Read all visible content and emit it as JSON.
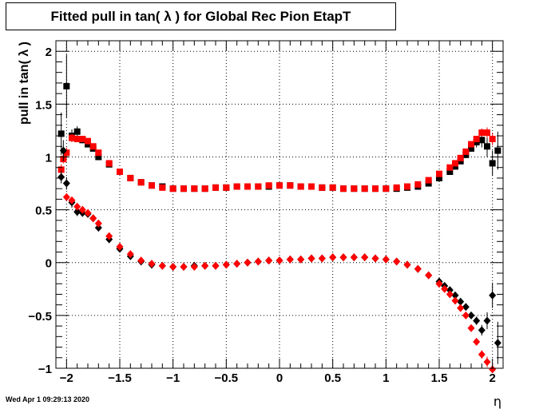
{
  "title": "Fitted pull in tan( λ ) for Global Rec Pion EtapT",
  "timestamp": "Wed Apr  1 09:29:13 2020",
  "chart_data": {
    "type": "scatter",
    "title": "Fitted pull in tan( λ ) for Global Rec Pion EtapT",
    "xlabel": "η",
    "ylabel": "pull in tan( λ )",
    "xlim": [
      -2.1,
      2.1
    ],
    "ylim": [
      -1.0,
      2.1
    ],
    "x_ticks": [
      -2,
      -1.5,
      -1,
      -0.5,
      0,
      0.5,
      1,
      1.5,
      2
    ],
    "x_tick_labels": [
      "−2",
      "−1.5",
      "−1",
      "−0.5",
      "0",
      "0.5",
      "1",
      "1.5",
      "2"
    ],
    "y_ticks": [
      -1,
      -0.5,
      0,
      0.5,
      1,
      1.5,
      2
    ],
    "y_tick_labels": [
      "−1",
      "−0.5",
      "0",
      "0.5",
      "1",
      "1.5",
      "2"
    ],
    "grid": true,
    "legend": "none",
    "series": [
      {
        "marker": "square",
        "color": "#000000",
        "x": [
          -2.05,
          -2.0,
          -1.95,
          -1.9,
          -1.85,
          -1.8,
          -1.75,
          -1.7,
          -1.6,
          -1.5,
          -1.4,
          -1.3,
          -1.2,
          -1.1,
          -1.0,
          -0.9,
          -0.8,
          -0.7,
          -0.6,
          -0.5,
          -0.4,
          -0.3,
          -0.2,
          -0.1,
          0.0,
          0.1,
          0.2,
          0.3,
          0.4,
          0.5,
          0.6,
          0.7,
          0.8,
          0.9,
          1.0,
          1.1,
          1.2,
          1.3,
          1.4,
          1.5,
          1.6,
          1.65,
          1.7,
          1.75,
          1.8,
          1.85,
          1.9,
          1.95,
          2.0,
          2.05
        ],
        "y": [
          1.22,
          1.67,
          1.2,
          1.24,
          1.16,
          1.12,
          1.08,
          1.0,
          0.93,
          0.86,
          0.8,
          0.76,
          0.73,
          0.72,
          0.7,
          0.7,
          0.7,
          0.7,
          0.71,
          0.71,
          0.72,
          0.72,
          0.72,
          0.72,
          0.73,
          0.73,
          0.72,
          0.72,
          0.71,
          0.71,
          0.7,
          0.7,
          0.7,
          0.7,
          0.7,
          0.7,
          0.71,
          0.72,
          0.75,
          0.8,
          0.86,
          0.91,
          0.96,
          1.02,
          1.08,
          1.14,
          1.16,
          1.1,
          0.94,
          1.06
        ],
        "err": [
          0.2,
          0.3,
          0.06,
          0.05,
          0.03,
          0.02,
          0.02,
          0.01,
          0.0,
          0.0,
          0.0,
          0.0,
          0.0,
          0.0,
          0.0,
          0.0,
          0.0,
          0.0,
          0.0,
          0.0,
          0.0,
          0.0,
          0.0,
          0.0,
          0.0,
          0.0,
          0.0,
          0.0,
          0.0,
          0.0,
          0.0,
          0.0,
          0.0,
          0.0,
          0.0,
          0.0,
          0.0,
          0.0,
          0.0,
          0.0,
          0.0,
          0.01,
          0.01,
          0.02,
          0.03,
          0.05,
          0.07,
          0.1,
          0.12,
          0.18
        ]
      },
      {
        "marker": "square",
        "color": "#ff0000",
        "x": [
          -2.05,
          -2.03,
          -2.0,
          -1.95,
          -1.9,
          -1.85,
          -1.8,
          -1.75,
          -1.7,
          -1.6,
          -1.5,
          -1.4,
          -1.3,
          -1.2,
          -1.1,
          -1.0,
          -0.9,
          -0.8,
          -0.7,
          -0.6,
          -0.5,
          -0.4,
          -0.3,
          -0.2,
          -0.1,
          0.0,
          0.1,
          0.2,
          0.3,
          0.4,
          0.5,
          0.6,
          0.7,
          0.8,
          0.9,
          1.0,
          1.1,
          1.2,
          1.3,
          1.4,
          1.5,
          1.6,
          1.65,
          1.7,
          1.75,
          1.8,
          1.85,
          1.9,
          1.95,
          2.0
        ],
        "y": [
          0.88,
          0.98,
          1.04,
          1.18,
          1.17,
          1.17,
          1.15,
          1.1,
          1.04,
          0.94,
          0.86,
          0.8,
          0.76,
          0.73,
          0.71,
          0.7,
          0.7,
          0.7,
          0.7,
          0.71,
          0.71,
          0.72,
          0.72,
          0.72,
          0.73,
          0.73,
          0.73,
          0.72,
          0.72,
          0.71,
          0.71,
          0.7,
          0.7,
          0.7,
          0.7,
          0.7,
          0.71,
          0.72,
          0.74,
          0.78,
          0.84,
          0.9,
          0.94,
          0.99,
          1.05,
          1.12,
          1.17,
          1.23,
          1.23,
          1.17
        ],
        "err": [
          0.05,
          0.04,
          0.05,
          0.04,
          0.03,
          0.02,
          0.02,
          0.01,
          0.01,
          0.0,
          0.0,
          0.0,
          0.0,
          0.0,
          0.0,
          0.0,
          0.0,
          0.0,
          0.0,
          0.0,
          0.0,
          0.0,
          0.0,
          0.0,
          0.0,
          0.0,
          0.0,
          0.0,
          0.0,
          0.0,
          0.0,
          0.0,
          0.0,
          0.0,
          0.0,
          0.0,
          0.0,
          0.0,
          0.0,
          0.0,
          0.0,
          0.0,
          0.01,
          0.01,
          0.02,
          0.02,
          0.03,
          0.04,
          0.05,
          0.06
        ]
      },
      {
        "marker": "diamond",
        "color": "#000000",
        "x": [
          -2.05,
          -2.03,
          -2.0,
          -1.95,
          -1.9,
          -1.85,
          -1.8,
          -1.75,
          -1.7,
          -1.6,
          -1.5,
          -1.4,
          -1.3,
          -1.2,
          -1.1,
          -1.0,
          -0.9,
          -0.8,
          -0.7,
          -0.6,
          -0.5,
          -0.4,
          -0.3,
          -0.2,
          -0.1,
          0.0,
          0.1,
          0.2,
          0.3,
          0.4,
          0.5,
          0.6,
          0.7,
          0.8,
          0.9,
          1.0,
          1.1,
          1.2,
          1.3,
          1.4,
          1.5,
          1.55,
          1.6,
          1.65,
          1.7,
          1.75,
          1.8,
          1.85,
          1.9,
          1.95,
          2.0,
          2.05
        ],
        "y": [
          0.81,
          1.06,
          0.75,
          0.57,
          0.48,
          0.47,
          0.46,
          0.42,
          0.33,
          0.22,
          0.13,
          0.06,
          0.01,
          -0.02,
          -0.03,
          -0.04,
          -0.04,
          -0.03,
          -0.03,
          -0.03,
          -0.02,
          -0.01,
          0.0,
          0.01,
          0.02,
          0.02,
          0.03,
          0.03,
          0.04,
          0.04,
          0.05,
          0.05,
          0.05,
          0.05,
          0.04,
          0.03,
          0.01,
          -0.02,
          -0.06,
          -0.12,
          -0.18,
          -0.22,
          -0.26,
          -0.31,
          -0.37,
          -0.42,
          -0.5,
          -0.55,
          -0.64,
          -0.55,
          -0.31,
          -0.76
        ],
        "err": [
          0.06,
          0.1,
          0.06,
          0.05,
          0.04,
          0.03,
          0.02,
          0.02,
          0.01,
          0.0,
          0.0,
          0.0,
          0.0,
          0.0,
          0.0,
          0.0,
          0.0,
          0.0,
          0.0,
          0.0,
          0.0,
          0.0,
          0.0,
          0.0,
          0.0,
          0.0,
          0.0,
          0.0,
          0.0,
          0.0,
          0.0,
          0.0,
          0.0,
          0.0,
          0.0,
          0.0,
          0.0,
          0.0,
          0.0,
          0.0,
          0.01,
          0.01,
          0.01,
          0.01,
          0.02,
          0.02,
          0.03,
          0.04,
          0.05,
          0.08,
          0.12,
          0.2
        ]
      },
      {
        "marker": "diamond",
        "color": "#ff0000",
        "x": [
          -2.0,
          -1.95,
          -1.9,
          -1.85,
          -1.8,
          -1.75,
          -1.7,
          -1.6,
          -1.5,
          -1.4,
          -1.3,
          -1.2,
          -1.1,
          -1.0,
          -0.9,
          -0.8,
          -0.7,
          -0.6,
          -0.5,
          -0.4,
          -0.3,
          -0.2,
          -0.1,
          0.0,
          0.1,
          0.2,
          0.3,
          0.4,
          0.5,
          0.6,
          0.7,
          0.8,
          0.9,
          1.0,
          1.1,
          1.2,
          1.3,
          1.4,
          1.5,
          1.55,
          1.6,
          1.65,
          1.7,
          1.75,
          1.8,
          1.85,
          1.9,
          1.95,
          2.0
        ],
        "y": [
          0.62,
          0.59,
          0.53,
          0.5,
          0.47,
          0.42,
          0.37,
          0.25,
          0.15,
          0.08,
          0.02,
          -0.01,
          -0.03,
          -0.04,
          -0.04,
          -0.04,
          -0.03,
          -0.03,
          -0.02,
          -0.01,
          0.0,
          0.01,
          0.02,
          0.02,
          0.03,
          0.03,
          0.04,
          0.04,
          0.05,
          0.05,
          0.05,
          0.05,
          0.04,
          0.03,
          0.01,
          -0.02,
          -0.06,
          -0.12,
          -0.2,
          -0.25,
          -0.3,
          -0.36,
          -0.43,
          -0.5,
          -0.62,
          -0.75,
          -0.87,
          -0.94,
          -1.01
        ],
        "err": [
          0.03,
          0.03,
          0.02,
          0.02,
          0.02,
          0.01,
          0.01,
          0.0,
          0.0,
          0.0,
          0.0,
          0.0,
          0.0,
          0.0,
          0.0,
          0.0,
          0.0,
          0.0,
          0.0,
          0.0,
          0.0,
          0.0,
          0.0,
          0.0,
          0.0,
          0.0,
          0.0,
          0.0,
          0.0,
          0.0,
          0.0,
          0.0,
          0.0,
          0.0,
          0.0,
          0.0,
          0.0,
          0.0,
          0.0,
          0.01,
          0.01,
          0.01,
          0.02,
          0.02,
          0.03,
          0.03,
          0.04,
          0.05,
          0.06
        ]
      }
    ]
  }
}
